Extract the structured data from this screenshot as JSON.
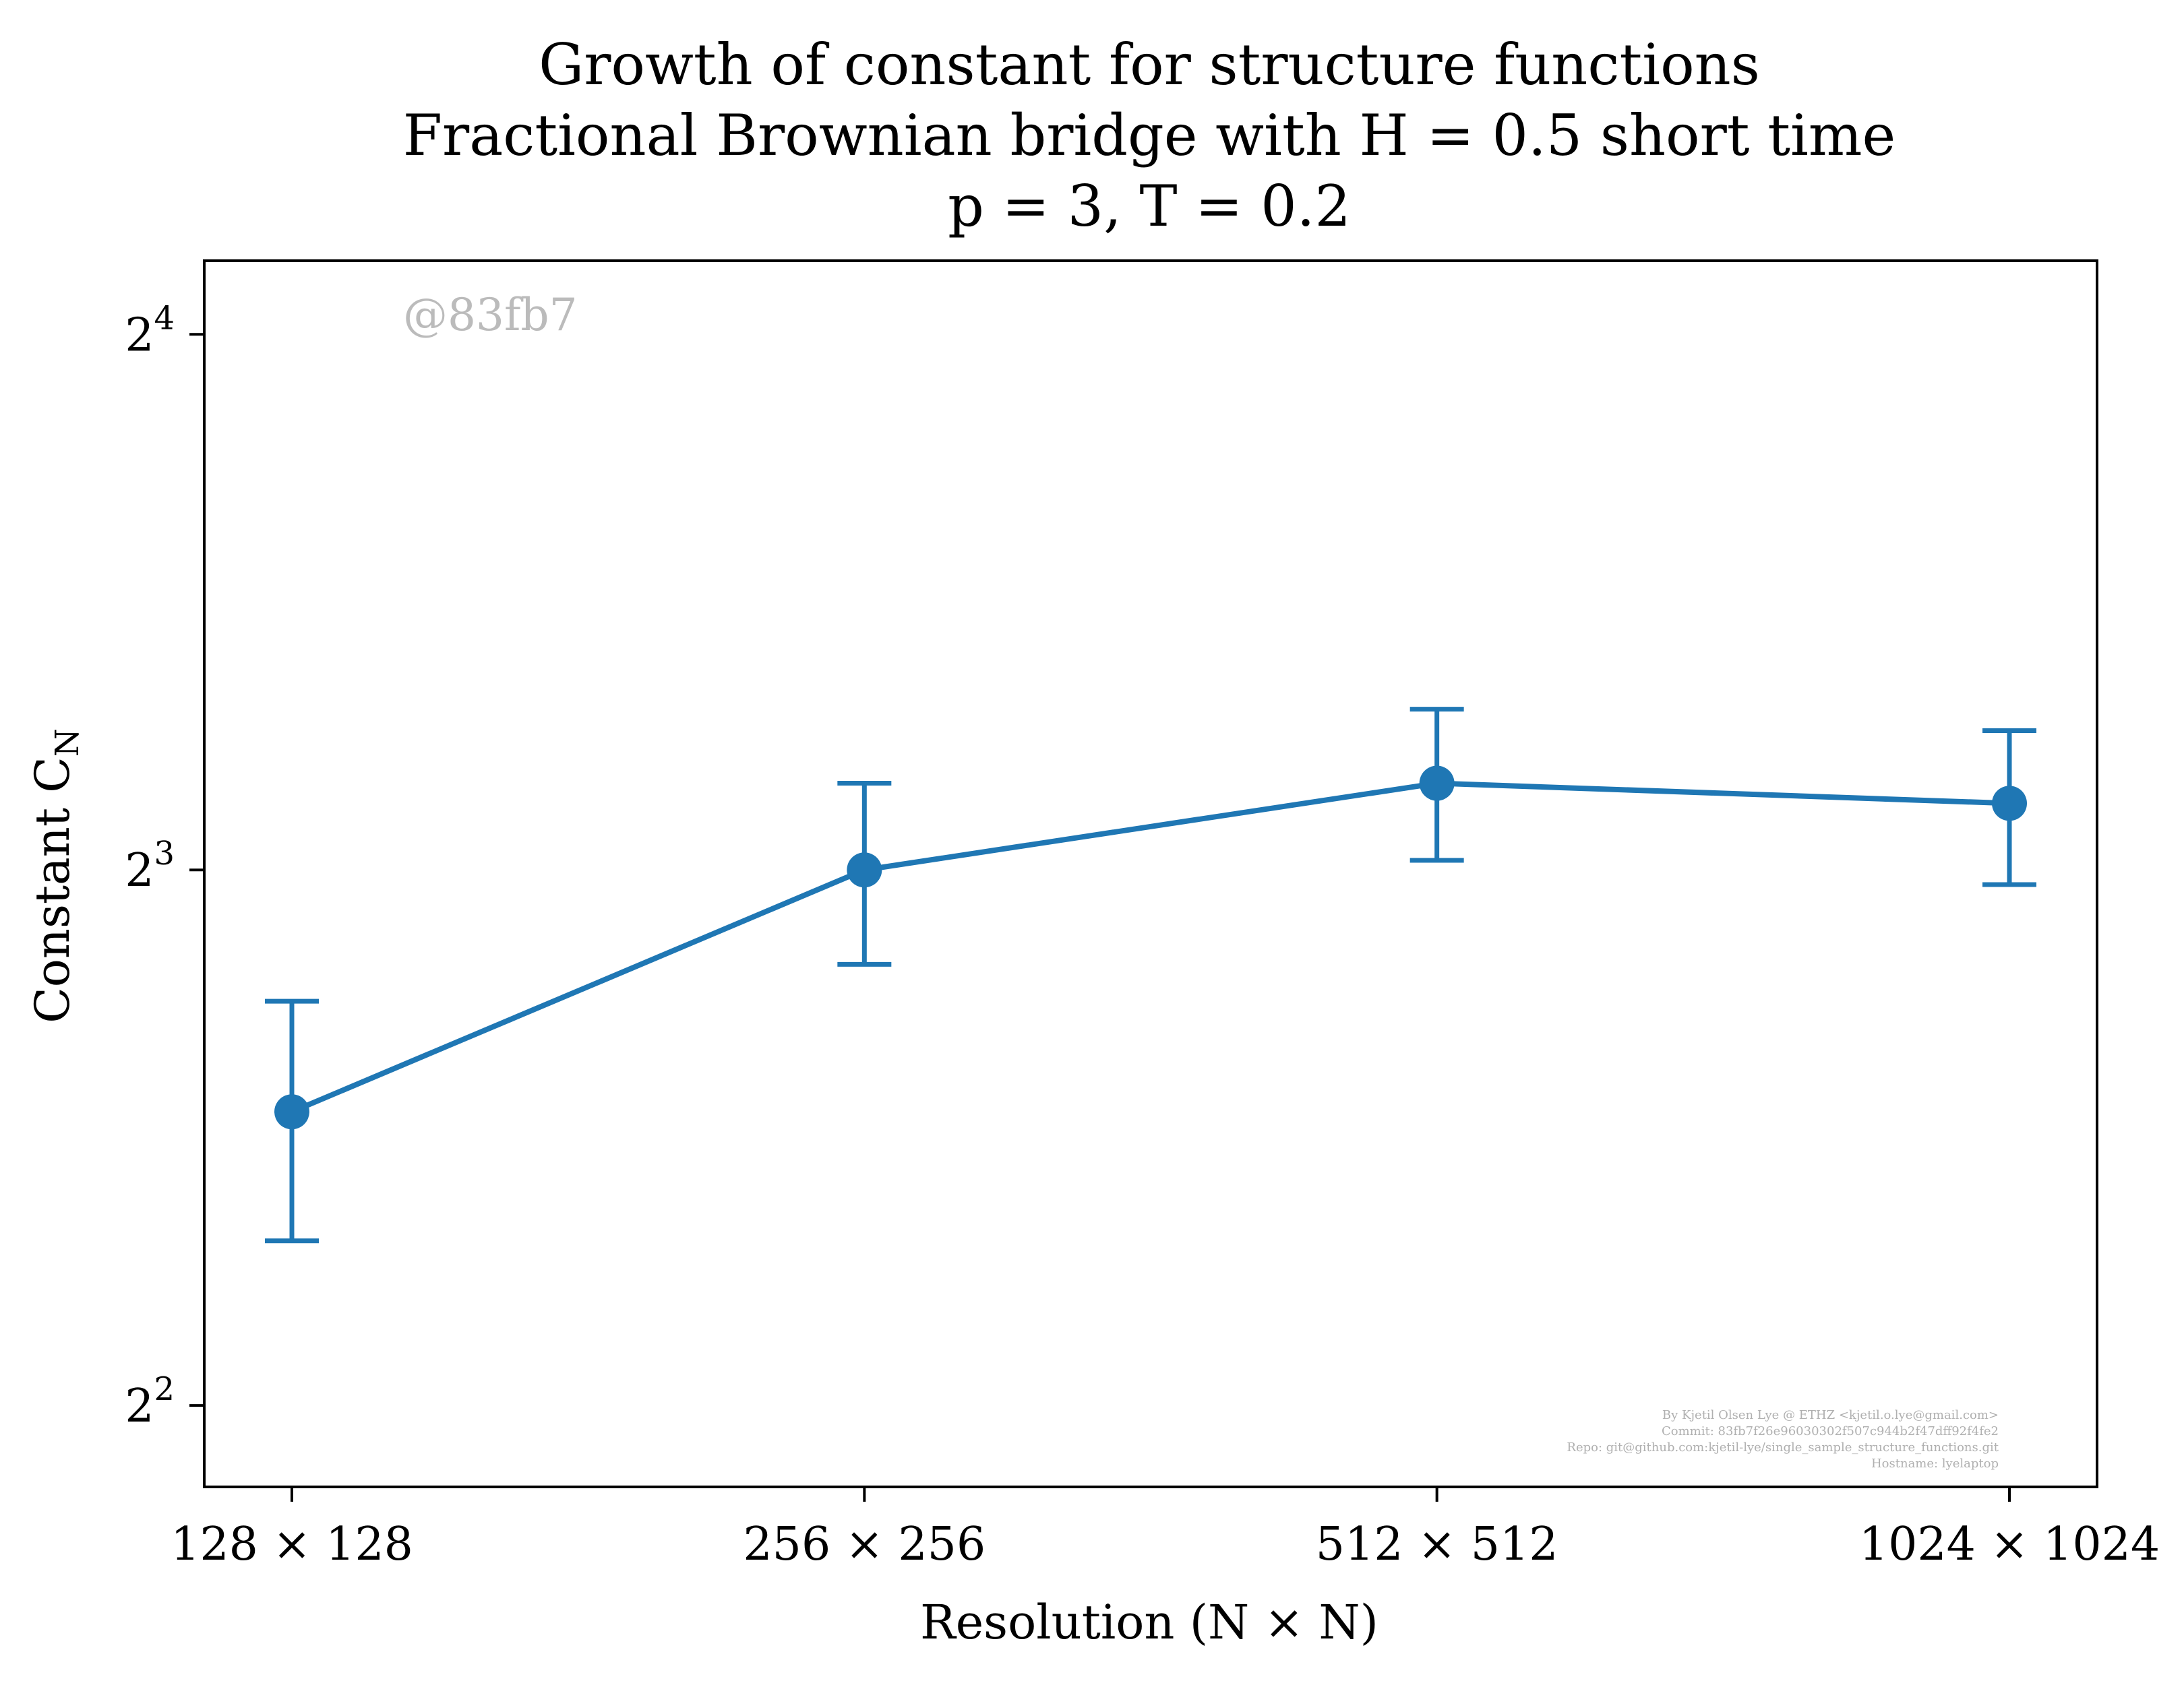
{
  "chart_data": {
    "type": "line",
    "title_lines": [
      "Growth of constant for structure functions",
      "Fractional Brownian bridge with H = 0.5 short time",
      "p = 3, T = 0.2"
    ],
    "xlabel": "Resolution (N × N)",
    "ylabel": "Constant C",
    "ylabel_subscript": "N",
    "categories": [
      "128 × 128",
      "256 × 256",
      "512 × 512",
      "1024 × 1024"
    ],
    "y_scale": "log2",
    "ylim": [
      3.6,
      17.6
    ],
    "yticks": [
      {
        "value": 4,
        "base": "2",
        "exp": "2"
      },
      {
        "value": 8,
        "base": "2",
        "exp": "3"
      },
      {
        "value": 16,
        "base": "2",
        "exp": "4"
      }
    ],
    "series": [
      {
        "color": "#1f77b4",
        "values": [
          5.85,
          8.0,
          8.95,
          8.72
        ],
        "err_low": [
          4.95,
          7.08,
          8.1,
          7.85
        ],
        "err_high": [
          6.75,
          8.95,
          9.85,
          9.58
        ]
      }
    ],
    "grid": false,
    "watermark": "@83fb7",
    "footer_lines": [
      "By Kjetil Olsen Lye @ ETHZ <kjetil.o.lye@gmail.com>",
      "Commit: 83fb7f26e96030302f507c944b2f47dff92f4fe2",
      "Repo: git@github.com:kjetil-lye/single_sample_structure_functions.git",
      "Hostname: lyelaptop"
    ]
  }
}
